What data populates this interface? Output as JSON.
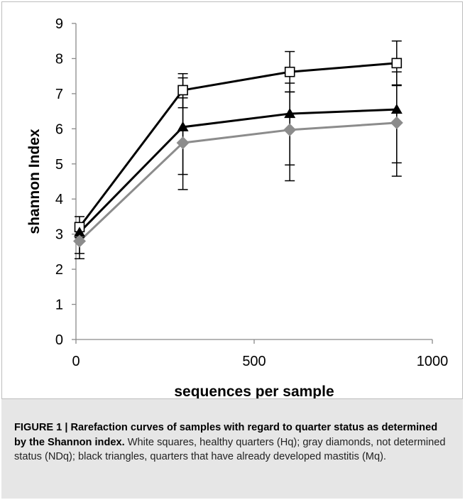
{
  "chart_data": {
    "type": "line",
    "title": "",
    "xlabel": "sequences per sample",
    "ylabel": "shannon Index",
    "xlim": [
      0,
      1000
    ],
    "ylim": [
      0,
      9
    ],
    "x_ticks": [
      "0",
      "500",
      "1000"
    ],
    "y_ticks": [
      "0",
      "1",
      "2",
      "3",
      "4",
      "5",
      "6",
      "7",
      "8",
      "9"
    ],
    "grid": false,
    "legend": "none",
    "x": [
      10,
      300,
      600,
      900
    ],
    "series": [
      {
        "marker": "white-square",
        "color": "#000000",
        "values": [
          3.2,
          7.1,
          7.62,
          7.87
        ],
        "err_low": [
          2.9,
          6.6,
          7.05,
          7.25
        ],
        "err_high": [
          3.5,
          7.57,
          8.2,
          8.5
        ]
      },
      {
        "marker": "black-triangle",
        "color": "#000000",
        "values": [
          3.05,
          6.05,
          6.43,
          6.55
        ],
        "err_low": [
          2.45,
          4.7,
          4.97,
          5.03
        ],
        "err_high": [
          3.3,
          7.45,
          7.05,
          7.23
        ]
      },
      {
        "marker": "gray-diamond",
        "color": "#8c8c8c",
        "values": [
          2.8,
          5.6,
          5.97,
          6.17
        ],
        "err_low": [
          2.3,
          4.27,
          4.52,
          4.65
        ],
        "err_high": [
          3.1,
          6.88,
          7.3,
          7.62
        ]
      }
    ]
  },
  "caption": {
    "label": "FIGURE 1 | Rarefaction curves of samples with regard to quarter status as determined by the Shannon index.",
    "text": " White squares, healthy quarters (Hq); gray diamonds, not determined status (NDq); black triangles, quarters that have already developed mastitis (Mq)."
  }
}
